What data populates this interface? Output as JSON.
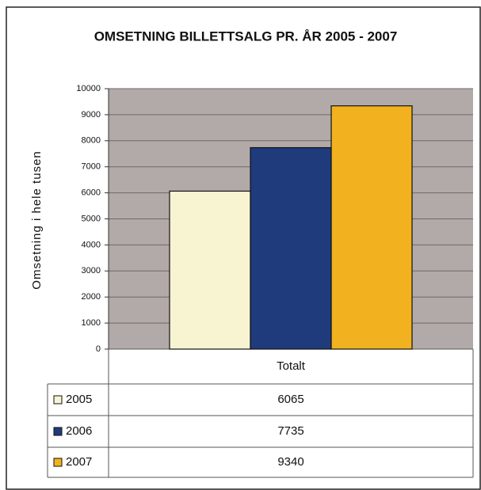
{
  "chart_data": {
    "type": "bar",
    "title": "OMSETNING BILLETTSALG PR. ÅR  2005 - 2007",
    "y_label": "Omsetning i hele tusen",
    "categories": [
      "Totalt"
    ],
    "series": [
      {
        "name": "2005",
        "color": "#f8f4d2",
        "values": [
          6065
        ]
      },
      {
        "name": "2006",
        "color": "#1f3b7c",
        "values": [
          7735
        ]
      },
      {
        "name": "2007",
        "color": "#f2b21f",
        "values": [
          9340
        ]
      }
    ],
    "ylim": [
      0,
      10000
    ],
    "yticks": [
      0,
      1000,
      2000,
      3000,
      4000,
      5000,
      6000,
      7000,
      8000,
      9000,
      10000
    ],
    "grid": true
  }
}
